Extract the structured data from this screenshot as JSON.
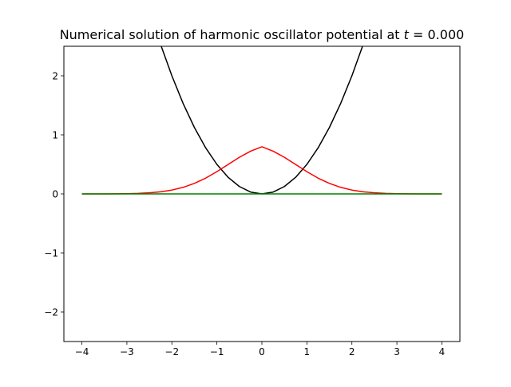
{
  "chart_data": {
    "type": "line",
    "title": "Numerical solution of harmonic oscillator potential at ",
    "title_var": "t",
    "title_rest": " =  0.000",
    "xlim": [
      -4.4,
      4.4
    ],
    "ylim": [
      -2.5,
      2.5
    ],
    "xticks": [
      -4,
      -3,
      -2,
      -1,
      0,
      1,
      2,
      3,
      4
    ],
    "yticks": [
      -2,
      -1,
      0,
      1,
      2
    ],
    "xtick_labels": [
      "−4",
      "−3",
      "−2",
      "−1",
      "0",
      "1",
      "2",
      "3",
      "4"
    ],
    "ytick_labels": [
      "−2",
      "−1",
      "0",
      "1",
      "2"
    ],
    "grid": false,
    "series": [
      {
        "color": "#000000",
        "description": "harmonic potential V(x) = x^2 / 2",
        "x": [
          -2.236,
          -2.0,
          -1.75,
          -1.5,
          -1.25,
          -1.0,
          -0.75,
          -0.5,
          -0.25,
          0.0,
          0.25,
          0.5,
          0.75,
          1.0,
          1.25,
          1.5,
          1.75,
          2.0,
          2.236
        ],
        "y": [
          2.5,
          2.0,
          1.531,
          1.125,
          0.781,
          0.5,
          0.281,
          0.125,
          0.031,
          0.0,
          0.031,
          0.125,
          0.281,
          0.5,
          0.781,
          1.125,
          1.531,
          2.0,
          2.5
        ]
      },
      {
        "color": "#ff0000",
        "description": "probability density |psi|^2",
        "x": [
          -4.0,
          -3.5,
          -3.0,
          -2.75,
          -2.5,
          -2.25,
          -2.0,
          -1.75,
          -1.5,
          -1.25,
          -1.0,
          -0.75,
          -0.5,
          -0.25,
          0.0,
          0.25,
          0.5,
          0.75,
          1.0,
          1.25,
          1.5,
          1.75,
          2.0,
          2.25,
          2.5,
          2.75,
          3.0,
          3.5,
          4.0
        ],
        "y": [
          0.0,
          0.0003,
          0.0039,
          0.0088,
          0.0182,
          0.0355,
          0.0649,
          0.1109,
          0.1777,
          0.2667,
          0.3762,
          0.4983,
          0.6199,
          0.7234,
          0.7979,
          0.7234,
          0.6199,
          0.4983,
          0.3762,
          0.2667,
          0.1777,
          0.1109,
          0.0649,
          0.0355,
          0.0182,
          0.0088,
          0.0039,
          0.0003,
          0.0
        ]
      },
      {
        "color": "#008000",
        "description": "imaginary part at t = 0",
        "x": [
          -4.0,
          4.0
        ],
        "y": [
          0.0,
          0.0
        ]
      }
    ]
  }
}
